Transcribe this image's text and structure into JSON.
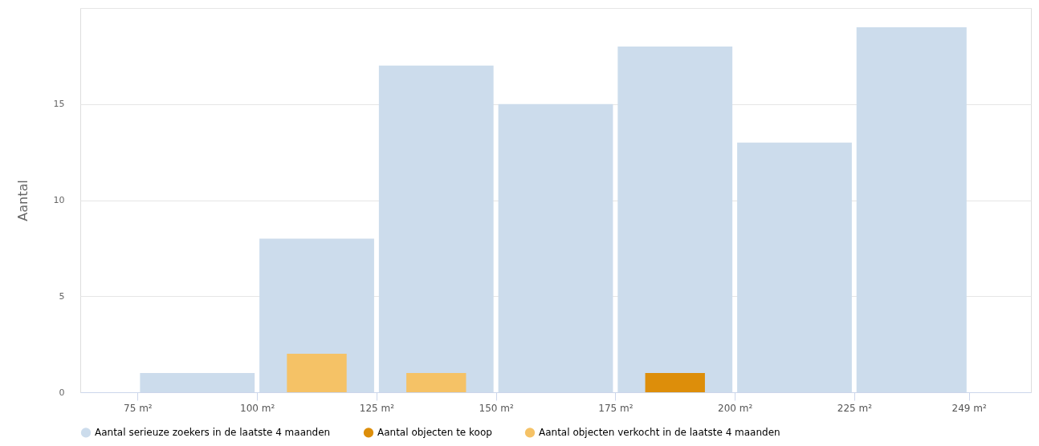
{
  "chart_data": {
    "type": "histogram",
    "ylabel": "Aantal",
    "bins": [
      75,
      100,
      125,
      150,
      175,
      200,
      225,
      249
    ],
    "series": [
      {
        "name": "Aantal serieuze zoekers in de laatste 4 maanden",
        "color": "#ccdcec",
        "values": [
          1,
          8,
          17,
          15,
          18,
          13,
          19
        ]
      },
      {
        "name": "Aantal objecten te koop",
        "color": "#dd8e0a",
        "values": [
          null,
          null,
          null,
          null,
          1,
          null,
          null
        ]
      },
      {
        "name": "Aantal objecten verkocht in de laatste 4 maanden",
        "color": "#f5c266",
        "values": [
          null,
          2,
          1,
          null,
          null,
          null,
          null
        ]
      }
    ],
    "xlim": [
      63,
      262
    ],
    "xticks": [
      {
        "value": 75,
        "label": "75 m²"
      },
      {
        "value": 100,
        "label": "100 m²"
      },
      {
        "value": 125,
        "label": "125 m²"
      },
      {
        "value": 150,
        "label": "150 m²"
      },
      {
        "value": 175,
        "label": "175 m²"
      },
      {
        "value": 200,
        "label": "200 m²"
      },
      {
        "value": 225,
        "label": "225 m²"
      },
      {
        "value": 249,
        "label": "249 m²"
      }
    ],
    "ylim": [
      0,
      20
    ],
    "yticks": [
      0,
      5,
      10,
      15,
      {
        "value": 20,
        "label": null
      }
    ],
    "grid": "y",
    "legend": "bottom"
  }
}
